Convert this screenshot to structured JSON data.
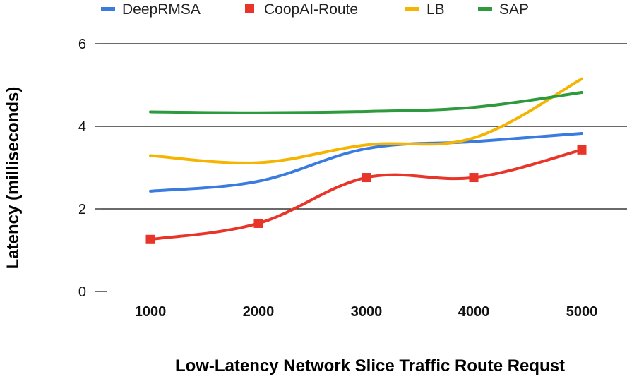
{
  "chart_data": {
    "type": "line",
    "title": "",
    "xlabel": "Low-Latency Network Slice Traffic Route Requst",
    "ylabel": "Latency (milliseconds)",
    "categories": [
      "1000",
      "2000",
      "3000",
      "4000",
      "5000"
    ],
    "ylim": [
      0,
      6
    ],
    "yticks": [
      "0",
      "2",
      "4",
      "6"
    ],
    "grid": true,
    "legend_position": "top",
    "series": [
      {
        "name": "DeepRMSA",
        "color": "#3a7be0",
        "values": [
          2.43,
          2.67,
          3.46,
          3.63,
          3.83
        ],
        "markers": false
      },
      {
        "name": "CoopAI-Route",
        "color": "#e8352a",
        "values": [
          1.26,
          1.65,
          2.76,
          2.76,
          3.43
        ],
        "markers": true
      },
      {
        "name": "LB",
        "color": "#f5b400",
        "values": [
          3.29,
          3.12,
          3.55,
          3.72,
          5.15
        ],
        "markers": false
      },
      {
        "name": "SAP",
        "color": "#2e9a3e",
        "values": [
          4.35,
          4.33,
          4.36,
          4.46,
          4.82
        ],
        "markers": false
      }
    ]
  }
}
